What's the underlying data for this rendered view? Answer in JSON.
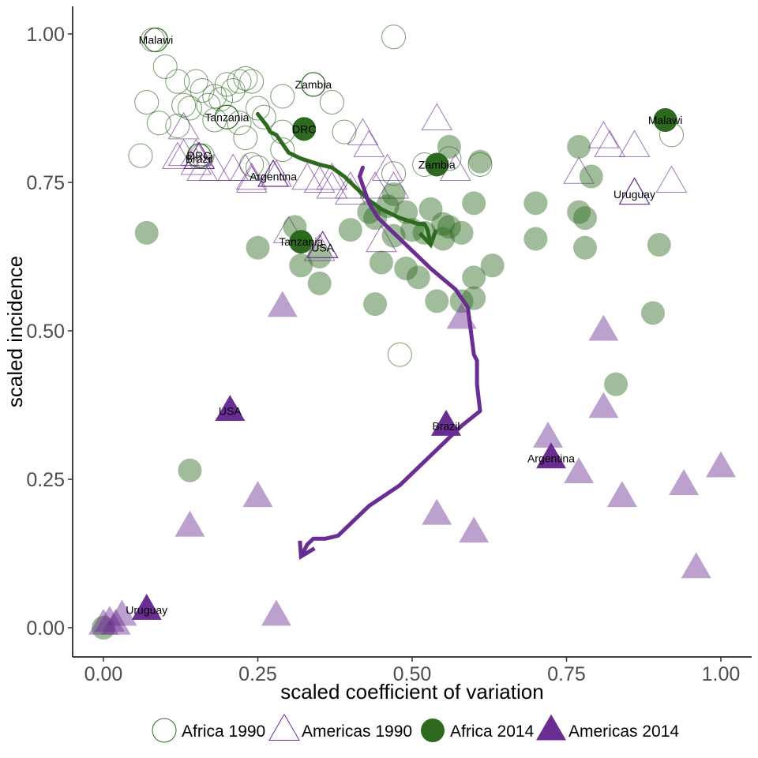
{
  "chart_data": {
    "type": "scatter",
    "xlabel": "scaled coefficient of variation",
    "ylabel": "scaled incidence",
    "xlim": [
      -0.05,
      1.05
    ],
    "ylim": [
      -0.05,
      1.05
    ],
    "x_ticks": [
      0,
      0.25,
      0.5,
      0.75,
      1.0
    ],
    "x_tick_labels": [
      "0.00",
      "0.25",
      "0.50",
      "0.75",
      "1.00"
    ],
    "y_ticks": [
      0,
      0.25,
      0.5,
      0.75,
      1.0
    ],
    "y_tick_labels": [
      "0.00",
      "0.25",
      "0.50",
      "0.75",
      "1.00"
    ],
    "grid": false,
    "legend_position": "bottom",
    "colors": {
      "africa": "#2d6a1f",
      "americas": "#6a2d91",
      "africa_fill": "#2d6a1f",
      "americas_fill": "#6a2d91"
    },
    "series": [
      {
        "name": "Africa 1990",
        "shape": "circle",
        "filled": false,
        "points": [
          [
            0.08,
            0.99
          ],
          [
            0.47,
            0.995
          ],
          [
            0.1,
            0.945
          ],
          [
            0.12,
            0.92
          ],
          [
            0.15,
            0.92
          ],
          [
            0.16,
            0.905
          ],
          [
            0.18,
            0.895
          ],
          [
            0.2,
            0.915
          ],
          [
            0.22,
            0.92
          ],
          [
            0.23,
            0.925
          ],
          [
            0.24,
            0.92
          ],
          [
            0.21,
            0.905
          ],
          [
            0.19,
            0.89
          ],
          [
            0.13,
            0.88
          ],
          [
            0.07,
            0.885
          ],
          [
            0.14,
            0.875
          ],
          [
            0.17,
            0.88
          ],
          [
            0.25,
            0.875
          ],
          [
            0.29,
            0.895
          ],
          [
            0.34,
            0.915
          ],
          [
            0.37,
            0.885
          ],
          [
            0.09,
            0.85
          ],
          [
            0.12,
            0.845
          ],
          [
            0.18,
            0.855
          ],
          [
            0.2,
            0.86
          ],
          [
            0.22,
            0.85
          ],
          [
            0.26,
            0.86
          ],
          [
            0.29,
            0.835
          ],
          [
            0.39,
            0.835
          ],
          [
            0.23,
            0.825
          ],
          [
            0.06,
            0.795
          ],
          [
            0.16,
            0.795
          ],
          [
            0.24,
            0.78
          ],
          [
            0.25,
            0.775
          ],
          [
            0.29,
            0.805
          ],
          [
            0.47,
            0.765
          ],
          [
            0.52,
            0.78
          ],
          [
            0.56,
            0.79
          ],
          [
            0.61,
            0.78
          ],
          [
            0.92,
            0.83
          ],
          [
            0.48,
            0.46
          ]
        ]
      },
      {
        "name": "Americas 1990",
        "shape": "triangle",
        "filled": false,
        "points": [
          [
            0.54,
            0.855
          ],
          [
            0.13,
            0.84
          ],
          [
            0.42,
            0.83
          ],
          [
            0.43,
            0.81
          ],
          [
            0.81,
            0.825
          ],
          [
            0.82,
            0.81
          ],
          [
            0.86,
            0.81
          ],
          [
            0.13,
            0.795
          ],
          [
            0.15,
            0.795
          ],
          [
            0.15,
            0.78
          ],
          [
            0.12,
            0.79
          ],
          [
            0.16,
            0.77
          ],
          [
            0.18,
            0.77
          ],
          [
            0.21,
            0.77
          ],
          [
            0.23,
            0.77
          ],
          [
            0.24,
            0.755
          ],
          [
            0.28,
            0.76
          ],
          [
            0.33,
            0.755
          ],
          [
            0.35,
            0.75
          ],
          [
            0.37,
            0.74
          ],
          [
            0.4,
            0.74
          ],
          [
            0.44,
            0.74
          ],
          [
            0.47,
            0.74
          ],
          [
            0.46,
            0.77
          ],
          [
            0.57,
            0.77
          ],
          [
            0.77,
            0.765
          ],
          [
            0.92,
            0.75
          ],
          [
            0.86,
            0.73
          ],
          [
            0.35,
            0.635
          ],
          [
            0.45,
            0.65
          ],
          [
            0.3,
            0.665
          ],
          [
            0.24,
            0.75
          ],
          [
            0.37,
            0.755
          ],
          [
            0.4,
            0.73
          ]
        ]
      },
      {
        "name": "Africa 2014",
        "shape": "circle",
        "filled": true,
        "points": [
          [
            0.56,
            0.81
          ],
          [
            0.61,
            0.785
          ],
          [
            0.77,
            0.81
          ],
          [
            0.79,
            0.76
          ],
          [
            0.07,
            0.665
          ],
          [
            0.31,
            0.675
          ],
          [
            0.25,
            0.64
          ],
          [
            0.32,
            0.61
          ],
          [
            0.35,
            0.625
          ],
          [
            0.35,
            0.58
          ],
          [
            0.4,
            0.67
          ],
          [
            0.43,
            0.7
          ],
          [
            0.44,
            0.69
          ],
          [
            0.46,
            0.71
          ],
          [
            0.47,
            0.73
          ],
          [
            0.49,
            0.7
          ],
          [
            0.53,
            0.705
          ],
          [
            0.6,
            0.715
          ],
          [
            0.7,
            0.715
          ],
          [
            0.77,
            0.7
          ],
          [
            0.78,
            0.69
          ],
          [
            0.5,
            0.67
          ],
          [
            0.52,
            0.665
          ],
          [
            0.55,
            0.68
          ],
          [
            0.56,
            0.675
          ],
          [
            0.58,
            0.665
          ],
          [
            0.7,
            0.655
          ],
          [
            0.78,
            0.64
          ],
          [
            0.9,
            0.645
          ],
          [
            0.45,
            0.615
          ],
          [
            0.49,
            0.605
          ],
          [
            0.51,
            0.59
          ],
          [
            0.6,
            0.59
          ],
          [
            0.63,
            0.61
          ],
          [
            0.44,
            0.545
          ],
          [
            0.54,
            0.55
          ],
          [
            0.58,
            0.55
          ],
          [
            0.6,
            0.555
          ],
          [
            0.89,
            0.53
          ],
          [
            0.83,
            0.41
          ],
          [
            0.14,
            0.265
          ],
          [
            0.0,
            0.0
          ],
          [
            0.55,
            0.655
          ],
          [
            0.47,
            0.66
          ]
        ]
      },
      {
        "name": "Americas 2014",
        "shape": "triangle",
        "filled": true,
        "points": [
          [
            0.29,
            0.54
          ],
          [
            0.58,
            0.52
          ],
          [
            0.81,
            0.5
          ],
          [
            0.81,
            0.37
          ],
          [
            0.72,
            0.32
          ],
          [
            0.25,
            0.22
          ],
          [
            0.14,
            0.17
          ],
          [
            0.54,
            0.19
          ],
          [
            0.6,
            0.16
          ],
          [
            0.77,
            0.26
          ],
          [
            0.84,
            0.22
          ],
          [
            0.94,
            0.24
          ],
          [
            1.0,
            0.27
          ],
          [
            0.96,
            0.1
          ],
          [
            0.28,
            0.02
          ],
          [
            0.01,
            0.01
          ],
          [
            0.03,
            0.02
          ],
          [
            0.02,
            0.005
          ],
          [
            0.0,
            0.005
          ]
        ]
      }
    ],
    "highlighted": [
      {
        "label": "Malawi",
        "series": "Africa 1990",
        "x": 0.085,
        "y": 0.99
      },
      {
        "label": "Zambia",
        "series": "Africa 1990",
        "x": 0.34,
        "y": 0.915
      },
      {
        "label": "Tanzania",
        "series": "Africa 1990",
        "x": 0.2,
        "y": 0.86
      },
      {
        "label": "DRC",
        "series": "Africa 1990",
        "x": 0.155,
        "y": 0.795
      },
      {
        "label": "Brazil",
        "series": "Americas 1990",
        "x": 0.155,
        "y": 0.79
      },
      {
        "label": "Argentina",
        "series": "Americas 1990",
        "x": 0.275,
        "y": 0.76
      },
      {
        "label": "USA",
        "series": "Americas 1990",
        "x": 0.355,
        "y": 0.64
      },
      {
        "label": "Uruguay",
        "series": "Americas 1990",
        "x": 0.86,
        "y": 0.73
      },
      {
        "label": "Malawi",
        "series": "Africa 2014",
        "x": 0.91,
        "y": 0.855
      },
      {
        "label": "DRC",
        "series": "Africa 2014",
        "x": 0.325,
        "y": 0.84
      },
      {
        "label": "Zambia",
        "series": "Africa 2014",
        "x": 0.54,
        "y": 0.78
      },
      {
        "label": "Tanzania",
        "series": "Africa 2014",
        "x": 0.32,
        "y": 0.65
      },
      {
        "label": "USA",
        "series": "Americas 2014",
        "x": 0.205,
        "y": 0.365
      },
      {
        "label": "Brazil",
        "series": "Americas 2014",
        "x": 0.555,
        "y": 0.34
      },
      {
        "label": "Argentina",
        "series": "Americas 2014",
        "x": 0.725,
        "y": 0.285
      },
      {
        "label": "Uruguay",
        "series": "Americas 2014",
        "x": 0.07,
        "y": 0.03
      }
    ],
    "trajectories": [
      {
        "series": "Africa",
        "points": [
          [
            0.25,
            0.865
          ],
          [
            0.265,
            0.845
          ],
          [
            0.27,
            0.835
          ],
          [
            0.28,
            0.83
          ],
          [
            0.29,
            0.815
          ],
          [
            0.3,
            0.8
          ],
          [
            0.32,
            0.79
          ],
          [
            0.35,
            0.78
          ],
          [
            0.37,
            0.775
          ],
          [
            0.39,
            0.76
          ],
          [
            0.41,
            0.74
          ],
          [
            0.43,
            0.72
          ],
          [
            0.45,
            0.705
          ],
          [
            0.48,
            0.69
          ],
          [
            0.51,
            0.68
          ],
          [
            0.52,
            0.68
          ],
          [
            0.525,
            0.67
          ],
          [
            0.53,
            0.645
          ]
        ]
      },
      {
        "series": "Americas",
        "points": [
          [
            0.42,
            0.775
          ],
          [
            0.415,
            0.76
          ],
          [
            0.42,
            0.745
          ],
          [
            0.43,
            0.715
          ],
          [
            0.445,
            0.69
          ],
          [
            0.46,
            0.675
          ],
          [
            0.49,
            0.645
          ],
          [
            0.53,
            0.605
          ],
          [
            0.57,
            0.57
          ],
          [
            0.59,
            0.54
          ],
          [
            0.6,
            0.46
          ],
          [
            0.605,
            0.45
          ],
          [
            0.605,
            0.41
          ],
          [
            0.61,
            0.365
          ],
          [
            0.58,
            0.34
          ],
          [
            0.53,
            0.29
          ],
          [
            0.48,
            0.24
          ],
          [
            0.43,
            0.205
          ],
          [
            0.38,
            0.155
          ],
          [
            0.36,
            0.15
          ],
          [
            0.34,
            0.15
          ],
          [
            0.33,
            0.14
          ],
          [
            0.32,
            0.12
          ]
        ]
      }
    ]
  }
}
